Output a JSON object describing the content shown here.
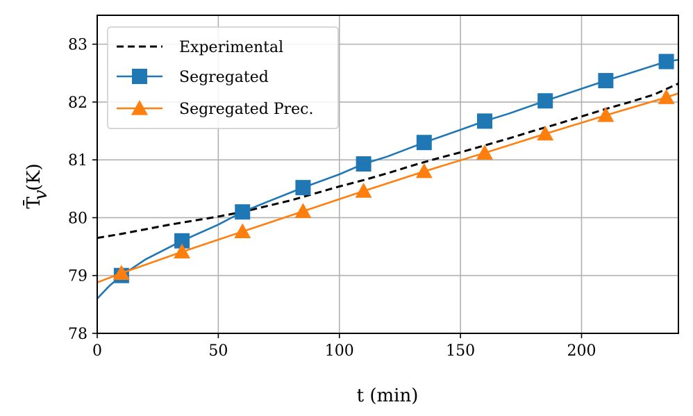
{
  "chart_data": {
    "type": "line",
    "xlabel": "t (min)",
    "ylabel": "T̄ (K)",
    "ylabel_sub": "v",
    "xlim": [
      0,
      240
    ],
    "ylim": [
      78,
      83.5
    ],
    "xticks": [
      0,
      50,
      100,
      150,
      200
    ],
    "yticks": [
      78,
      79,
      80,
      81,
      82,
      83
    ],
    "grid": true,
    "legend_position": "upper-left",
    "series": [
      {
        "name": "Experimental",
        "color": "#000000",
        "style": "dashed",
        "marker": "none",
        "x": [
          0,
          10,
          20,
          30,
          40,
          50,
          60,
          70,
          80,
          90,
          100,
          110,
          120,
          130,
          140,
          150,
          160,
          170,
          180,
          190,
          200,
          210,
          220,
          230,
          240
        ],
        "y": [
          79.65,
          79.72,
          79.8,
          79.88,
          79.95,
          80.02,
          80.1,
          80.2,
          80.3,
          80.42,
          80.54,
          80.65,
          80.77,
          80.9,
          81.02,
          81.13,
          81.25,
          81.37,
          81.5,
          81.62,
          81.75,
          81.88,
          82.0,
          82.13,
          82.32
        ]
      },
      {
        "name": "Segregated",
        "color": "#1f77b4",
        "style": "solid",
        "marker": "square",
        "x": [
          0,
          5,
          10,
          20,
          35,
          50,
          60,
          70,
          85,
          100,
          110,
          120,
          135,
          150,
          160,
          170,
          185,
          200,
          210,
          220,
          235,
          240
        ],
        "y": [
          78.6,
          78.82,
          79.0,
          79.28,
          79.6,
          79.88,
          80.1,
          80.27,
          80.52,
          80.75,
          80.93,
          81.06,
          81.3,
          81.52,
          81.67,
          81.8,
          82.02,
          82.23,
          82.37,
          82.5,
          82.7,
          82.73
        ],
        "marker_x": [
          10,
          35,
          60,
          85,
          110,
          135,
          160,
          185,
          210,
          235
        ],
        "marker_y": [
          79.0,
          79.6,
          80.1,
          80.52,
          80.93,
          81.3,
          81.67,
          82.02,
          82.37,
          82.7
        ]
      },
      {
        "name": "Segregated Prec.",
        "color": "#ff7f0e",
        "style": "solid",
        "marker": "triangle",
        "x": [
          0,
          10,
          35,
          60,
          85,
          110,
          135,
          160,
          185,
          210,
          235,
          240
        ],
        "y": [
          78.88,
          79.04,
          79.41,
          79.76,
          80.11,
          80.46,
          80.8,
          81.12,
          81.45,
          81.77,
          82.08,
          82.15
        ],
        "marker_x": [
          10,
          35,
          60,
          85,
          110,
          135,
          160,
          185,
          210,
          235
        ],
        "marker_y": [
          79.04,
          79.41,
          79.76,
          80.11,
          80.46,
          80.8,
          81.12,
          81.45,
          81.77,
          82.08
        ]
      }
    ]
  }
}
